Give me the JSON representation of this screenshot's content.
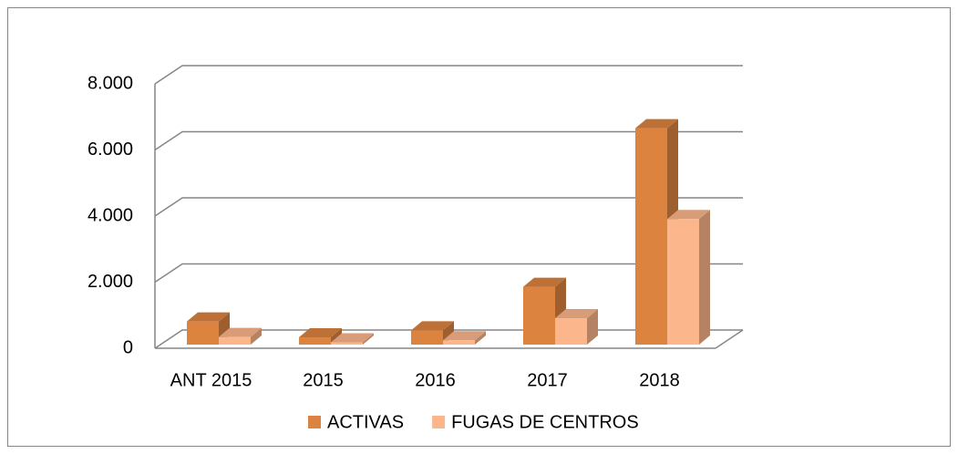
{
  "chart_data": {
    "type": "bar3d",
    "categories": [
      "ANT 2015",
      "2015",
      "2016",
      "2017",
      "2018"
    ],
    "series": [
      {
        "name": "ACTIVAS",
        "color": "#dd8340",
        "values": [
          700,
          220,
          430,
          1750,
          6550
        ]
      },
      {
        "name": "FUGAS DE CENTROS",
        "color": "#fbb68b",
        "values": [
          230,
          70,
          130,
          800,
          3800
        ]
      }
    ],
    "ylim": [
      0,
      8000
    ],
    "yticks": [
      0,
      {
        "value": 2000,
        "label": "2.000"
      },
      {
        "value": 4000,
        "label": "4.000"
      },
      {
        "value": 6000,
        "label": "6.000"
      },
      {
        "value": 8000,
        "label": "8.000"
      }
    ],
    "grid": true,
    "legend": "bottom"
  }
}
